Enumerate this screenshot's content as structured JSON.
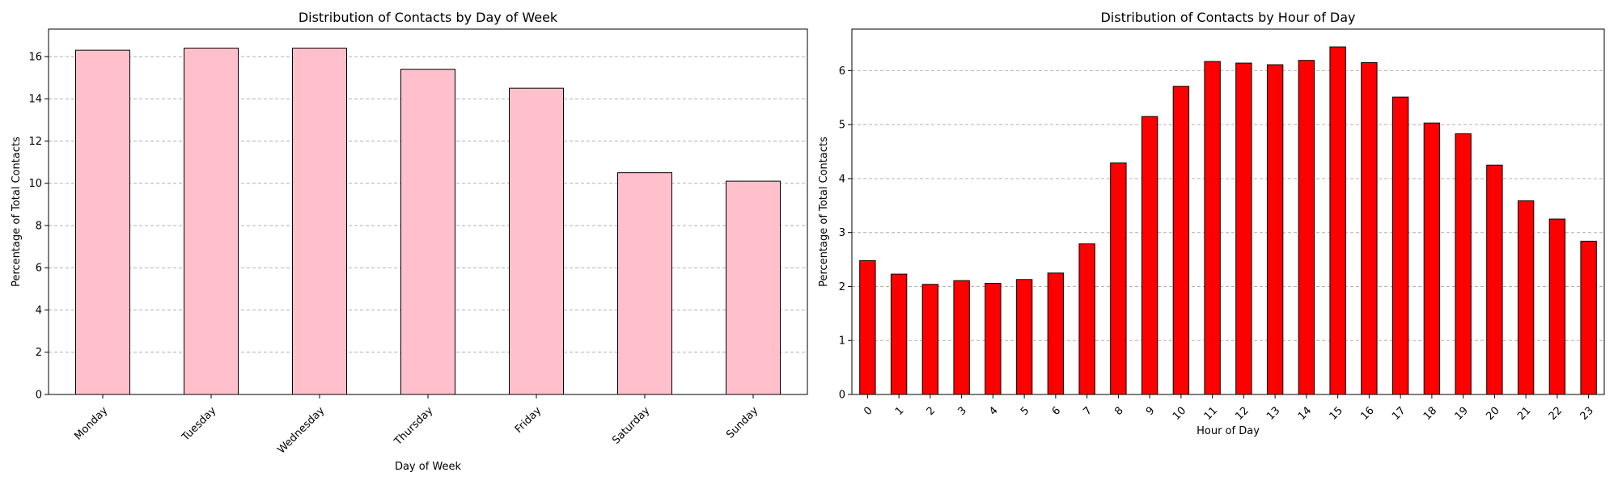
{
  "colors": {
    "bar_left": "#FFC0CB",
    "bar_right": "#FF0000",
    "edge": "#000000",
    "grid": "#b0b0b0"
  },
  "chart_data": [
    {
      "type": "bar",
      "title": "Distribution of Contacts by Day of Week",
      "xlabel": "Day of Week",
      "ylabel": "Percentage of Total Contacts",
      "categories": [
        "Monday",
        "Tuesday",
        "Wednesday",
        "Thursday",
        "Friday",
        "Saturday",
        "Sunday"
      ],
      "values": [
        16.3,
        16.4,
        16.4,
        15.4,
        14.5,
        10.5,
        10.1
      ],
      "ylim": [
        0,
        17.3
      ],
      "yticks": [
        0,
        2,
        4,
        6,
        8,
        10,
        12,
        14,
        16
      ],
      "grid": "y-dashed",
      "tick_rotation": 45
    },
    {
      "type": "bar",
      "title": "Distribution of Contacts by Hour of Day",
      "xlabel": "Hour of Day",
      "ylabel": "Percentage of Total Contacts",
      "categories": [
        "0",
        "1",
        "2",
        "3",
        "4",
        "5",
        "6",
        "7",
        "8",
        "9",
        "10",
        "11",
        "12",
        "13",
        "14",
        "15",
        "16",
        "17",
        "18",
        "19",
        "20",
        "21",
        "22",
        "23"
      ],
      "values": [
        2.48,
        2.23,
        2.04,
        2.11,
        2.06,
        2.13,
        2.25,
        2.79,
        4.29,
        5.15,
        5.71,
        6.17,
        6.14,
        6.11,
        6.19,
        6.44,
        6.15,
        5.51,
        5.03,
        4.83,
        4.25,
        3.59,
        3.25,
        2.84
      ],
      "ylim": [
        0,
        6.77
      ],
      "yticks": [
        0,
        1,
        2,
        3,
        4,
        5,
        6
      ],
      "grid": "y-dashed",
      "tick_rotation": 45
    }
  ]
}
